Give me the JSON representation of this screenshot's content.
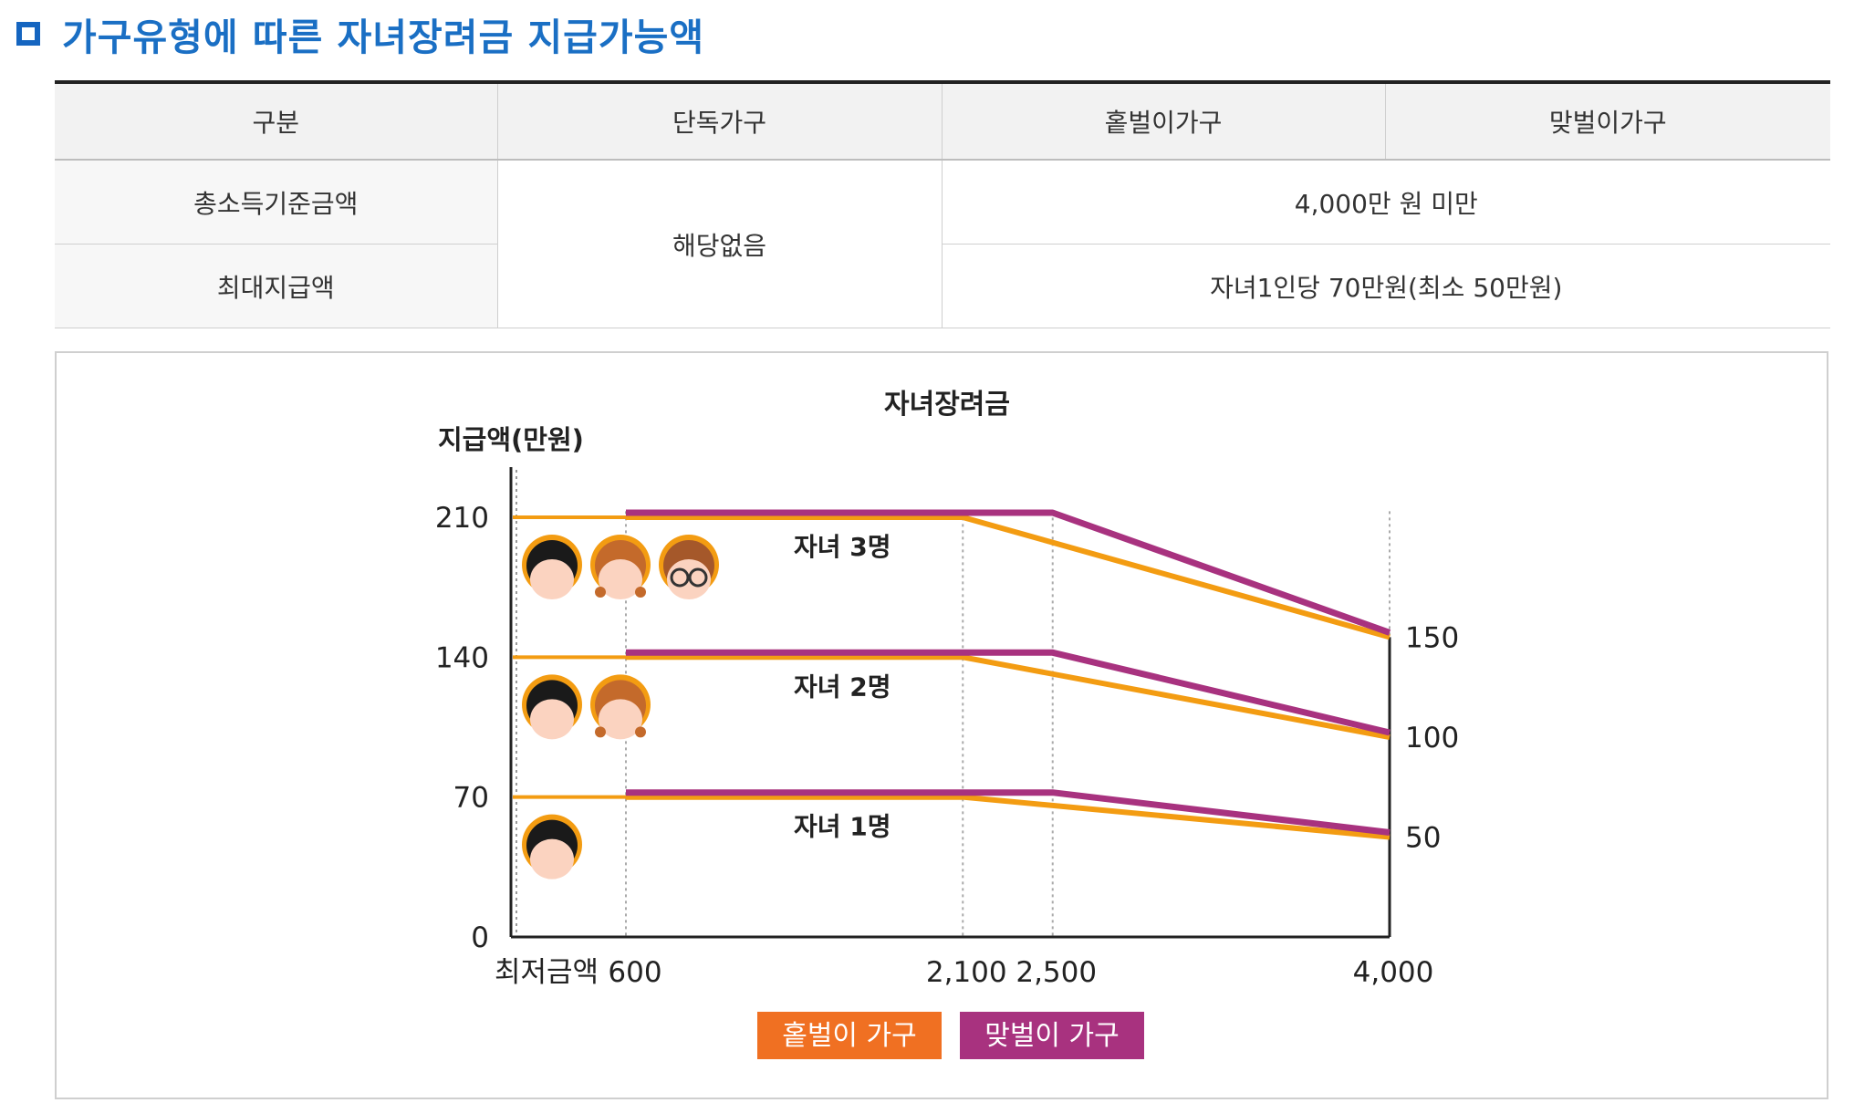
{
  "heading": "가구유형에 따른 자녀장려금 지급가능액",
  "table": {
    "headers": [
      "구분",
      "단독가구",
      "홑벌이가구",
      "맞벌이가구"
    ],
    "rows": {
      "income_label": "총소득기준금액",
      "max_label": "최대지급액",
      "single_value": "해당없음",
      "income_value": "4,000만 원 미만",
      "max_value": "자녀1인당 70만원(최소 50만원)"
    }
  },
  "chart_data": {
    "type": "line",
    "title": "자녀장려금",
    "ylabel": "지급액(만원)",
    "xlabel": "",
    "x_ticks": [
      "600",
      "2,100",
      "2,500",
      "4,000"
    ],
    "x_min_label": "최저금액",
    "y_ticks": [
      "0",
      "70",
      "140",
      "210"
    ],
    "right_labels": [
      "150",
      "100",
      "50"
    ],
    "ylim": [
      0,
      210
    ],
    "xlim": [
      600,
      4000
    ],
    "colors": {
      "single_earner": "#f39c12",
      "dual_earner": "#a8327f",
      "legend_single": "#f07022",
      "legend_dual": "#a8327f"
    },
    "series": [
      {
        "name": "홑벌이 가구",
        "group": "자녀 3명",
        "points": [
          [
            600,
            210
          ],
          [
            2100,
            210
          ],
          [
            4000,
            150
          ]
        ]
      },
      {
        "name": "맞벌이 가구",
        "group": "자녀 3명",
        "points": [
          [
            600,
            210
          ],
          [
            2500,
            210
          ],
          [
            4000,
            150
          ]
        ]
      },
      {
        "name": "홑벌이 가구",
        "group": "자녀 2명",
        "points": [
          [
            600,
            140
          ],
          [
            2100,
            140
          ],
          [
            4000,
            100
          ]
        ]
      },
      {
        "name": "맞벌이 가구",
        "group": "자녀 2명",
        "points": [
          [
            600,
            140
          ],
          [
            2500,
            140
          ],
          [
            4000,
            100
          ]
        ]
      },
      {
        "name": "홑벌이 가구",
        "group": "자녀 1명",
        "points": [
          [
            600,
            70
          ],
          [
            2100,
            70
          ],
          [
            4000,
            50
          ]
        ]
      },
      {
        "name": "맞벌이 가구",
        "group": "자녀 1명",
        "points": [
          [
            600,
            70
          ],
          [
            2500,
            70
          ],
          [
            4000,
            50
          ]
        ]
      }
    ],
    "groups": [
      {
        "label": "자녀 3명",
        "children": [
          "boy",
          "girl",
          "glasses"
        ]
      },
      {
        "label": "자녀 2명",
        "children": [
          "boy",
          "girl"
        ]
      },
      {
        "label": "자녀 1명",
        "children": [
          "boy"
        ]
      }
    ],
    "legend": [
      "홑벌이 가구",
      "맞벌이 가구"
    ],
    "legend_placement": "bottom-center",
    "grid": false
  }
}
